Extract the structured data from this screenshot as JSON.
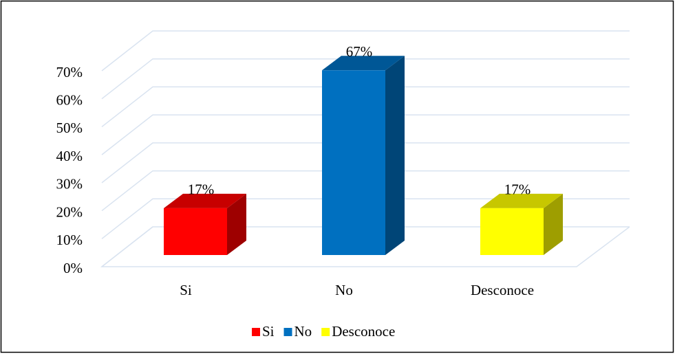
{
  "chart_data": {
    "type": "bar3d",
    "categories": [
      "Si",
      "No",
      "Desconoce"
    ],
    "values": [
      17,
      67,
      17
    ],
    "value_labels": [
      "17%",
      "67%",
      "17%"
    ],
    "colors": [
      "#ff0000",
      "#0070c0",
      "#ffff00"
    ],
    "ylim": [
      0,
      70
    ],
    "yticks": [
      {
        "value": 0,
        "label": "0%"
      },
      {
        "value": 10,
        "label": "10%"
      },
      {
        "value": 20,
        "label": "20%"
      },
      {
        "value": 30,
        "label": "30%"
      },
      {
        "value": 40,
        "label": "40%"
      },
      {
        "value": 50,
        "label": "50%"
      },
      {
        "value": 60,
        "label": "60%"
      },
      {
        "value": 70,
        "label": "70%"
      }
    ],
    "grid": true,
    "legend": "bottom"
  }
}
